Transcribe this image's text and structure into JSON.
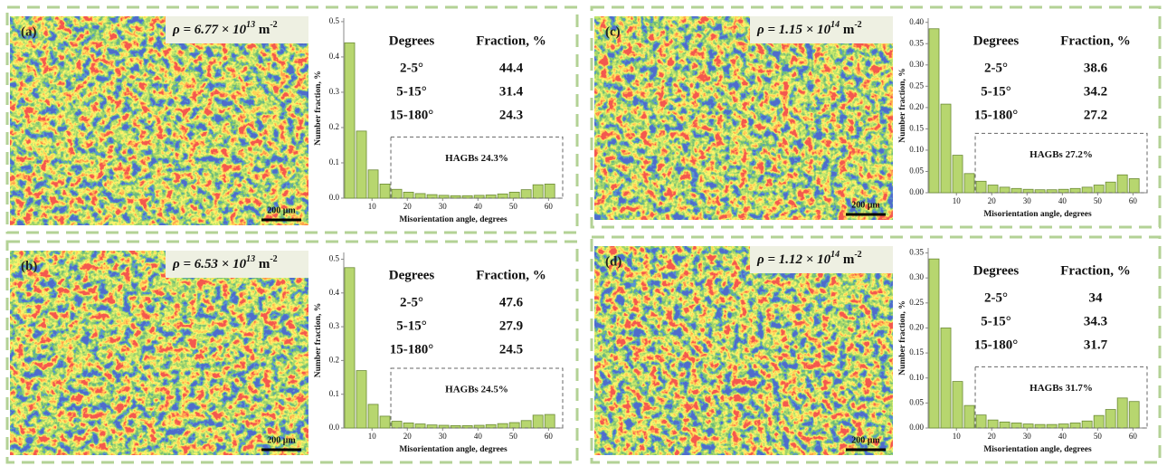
{
  "chart_data": [
    {
      "type": "histogram",
      "label": "(a)",
      "density": {
        "text": "ρ = 6.77 × 10",
        "exp": "13",
        "unit": " m",
        "unit_exp": "-2"
      },
      "table": {
        "header": [
          "Degrees",
          "Fraction, %"
        ],
        "rows": [
          [
            "2-5°",
            44.4
          ],
          [
            "5-15°",
            31.4
          ],
          [
            "15-180°",
            24.3
          ]
        ]
      },
      "annotation": "HAGBs 24.3%",
      "scale_bar": "200 μm",
      "xlabel": "Misorientation angle, degrees",
      "ylabel": "Number fraction, %",
      "bins": [
        2,
        5.33,
        8.67,
        12,
        15.33,
        18.67,
        22,
        25.33,
        28.67,
        32,
        35.33,
        38.67,
        42,
        45.33,
        48.67,
        52,
        55.33,
        58.67,
        62
      ],
      "values": [
        0.44,
        0.19,
        0.08,
        0.04,
        0.025,
        0.017,
        0.013,
        0.01,
        0.008,
        0.007,
        0.007,
        0.008,
        0.009,
        0.012,
        0.017,
        0.024,
        0.038,
        0.04
      ],
      "color": "#b7d66f",
      "xlim": [
        2,
        64
      ],
      "ylim": [
        0,
        0.51
      ],
      "xticks": [
        10,
        20,
        30,
        40,
        50,
        60
      ],
      "yticks": [
        {
          "value": 0,
          "label": "0.0"
        },
        0.1,
        0.2,
        0.3,
        0.4,
        0.5
      ]
    },
    {
      "type": "histogram",
      "label": "(b)",
      "density": {
        "text": "ρ = 6.53 × 10",
        "exp": "13",
        "unit": " m",
        "unit_exp": "-2"
      },
      "table": {
        "header": [
          "Degrees",
          "Fraction, %"
        ],
        "rows": [
          [
            "2-5°",
            47.6
          ],
          [
            "5-15°",
            27.9
          ],
          [
            "15-180°",
            24.5
          ]
        ]
      },
      "annotation": "HAGBs 24.5%",
      "scale_bar": "200 μm",
      "xlabel": "Misorientation angle, degrees",
      "ylabel": "Number fraction, %",
      "bins": [
        2,
        5.33,
        8.67,
        12,
        15.33,
        18.67,
        22,
        25.33,
        28.67,
        32,
        35.33,
        38.67,
        42,
        45.33,
        48.67,
        52,
        55.33,
        58.67,
        62
      ],
      "values": [
        0.475,
        0.17,
        0.07,
        0.035,
        0.02,
        0.015,
        0.012,
        0.009,
        0.008,
        0.007,
        0.007,
        0.008,
        0.01,
        0.013,
        0.016,
        0.022,
        0.038,
        0.04
      ],
      "color": "#b7d66f",
      "xlim": [
        2,
        64
      ],
      "ylim": [
        0,
        0.52
      ],
      "xticks": [
        10,
        20,
        30,
        40,
        50,
        60
      ],
      "yticks": [
        {
          "value": 0,
          "label": "0.0"
        },
        0.1,
        0.2,
        0.3,
        0.4,
        0.5
      ]
    },
    {
      "type": "histogram",
      "label": "(c)",
      "density": {
        "text": "ρ = 1.15 × 10",
        "exp": "14",
        "unit": " m",
        "unit_exp": "-2"
      },
      "table": {
        "header": [
          "Degrees",
          "Fraction, %"
        ],
        "rows": [
          [
            "2-5°",
            38.6
          ],
          [
            "5-15°",
            34.2
          ],
          [
            "15-180°",
            27.2
          ]
        ]
      },
      "annotation": "HAGBs 27.2%",
      "scale_bar": "200 μm",
      "xlabel": "Misorientation angle, degrees",
      "ylabel": "Number fraction, %",
      "bins": [
        2,
        5.33,
        8.67,
        12,
        15.33,
        18.67,
        22,
        25.33,
        28.67,
        32,
        35.33,
        38.67,
        42,
        45.33,
        48.67,
        52,
        55.33,
        58.67,
        62
      ],
      "values": [
        0.385,
        0.208,
        0.088,
        0.045,
        0.027,
        0.018,
        0.013,
        0.01,
        0.008,
        0.007,
        0.007,
        0.008,
        0.01,
        0.013,
        0.018,
        0.025,
        0.042,
        0.033
      ],
      "color": "#b7d66f",
      "xlim": [
        2,
        64
      ],
      "ylim": [
        0,
        0.41
      ],
      "xticks": [
        10,
        20,
        30,
        40,
        50,
        60
      ],
      "yticks": [
        {
          "value": 0,
          "label": "0.00"
        },
        {
          "value": 0.05,
          "label": "0.05"
        },
        {
          "value": 0.1,
          "label": "0.10"
        },
        {
          "value": 0.15,
          "label": "0.15"
        },
        {
          "value": 0.2,
          "label": "0.20"
        },
        {
          "value": 0.25,
          "label": "0.25"
        },
        {
          "value": 0.3,
          "label": "0.30"
        },
        {
          "value": 0.35,
          "label": "0.35"
        },
        {
          "value": 0.4,
          "label": "0.40"
        }
      ]
    },
    {
      "type": "histogram",
      "label": "(d)",
      "density": {
        "text": "ρ = 1.12 × 10",
        "exp": "14",
        "unit": " m",
        "unit_exp": "-2"
      },
      "table": {
        "header": [
          "Degrees",
          "Fraction, %"
        ],
        "rows": [
          [
            "2-5°",
            34
          ],
          [
            "5-15°",
            34.3
          ],
          [
            "15-180°",
            31.7
          ]
        ]
      },
      "annotation": "HAGBs 31.7%",
      "scale_bar": "200 μm",
      "xlabel": "Misorientation angle, degrees",
      "ylabel": "Number fraction, %",
      "bins": [
        2,
        5.33,
        8.67,
        12,
        15.33,
        18.67,
        22,
        25.33,
        28.67,
        32,
        35.33,
        38.67,
        42,
        45.33,
        48.67,
        52,
        55.33,
        58.67,
        62
      ],
      "values": [
        0.338,
        0.2,
        0.093,
        0.045,
        0.026,
        0.016,
        0.012,
        0.01,
        0.008,
        0.007,
        0.007,
        0.008,
        0.01,
        0.014,
        0.025,
        0.037,
        0.06,
        0.053
      ],
      "color": "#b7d66f",
      "xlim": [
        2,
        64
      ],
      "ylim": [
        0,
        0.36
      ],
      "xticks": [
        10,
        20,
        30,
        40,
        50,
        60
      ],
      "yticks": [
        {
          "value": 0,
          "label": "0.00"
        },
        {
          "value": 0.05,
          "label": "0.05"
        },
        {
          "value": 0.1,
          "label": "0.10"
        },
        {
          "value": 0.15,
          "label": "0.15"
        },
        {
          "value": 0.2,
          "label": "0.20"
        },
        {
          "value": 0.25,
          "label": "0.25"
        },
        {
          "value": 0.3,
          "label": "0.30"
        },
        {
          "value": 0.35,
          "label": "0.35"
        }
      ]
    }
  ]
}
